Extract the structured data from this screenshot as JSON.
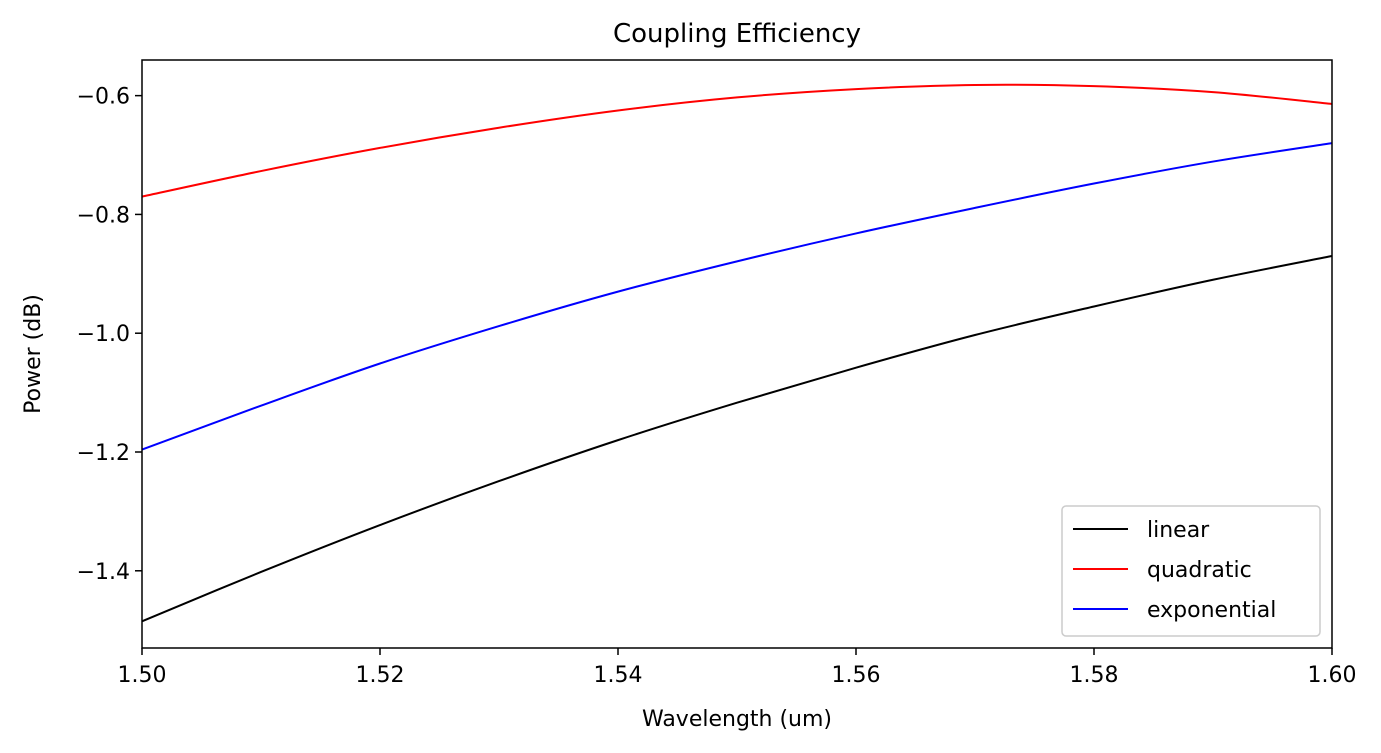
{
  "chart_data": {
    "type": "line",
    "title": "Coupling Efficiency",
    "xlabel": "Wavelength (um)",
    "ylabel": "Power (dB)",
    "xlim": [
      1.5,
      1.6
    ],
    "ylim": [
      -1.53,
      -0.54
    ],
    "x_ticks": [
      1.5,
      1.52,
      1.54,
      1.56,
      1.58,
      1.6
    ],
    "x_tick_labels": [
      "1.50",
      "1.52",
      "1.54",
      "1.56",
      "1.58",
      "1.60"
    ],
    "y_ticks": [
      -1.4,
      -1.2,
      -1.0,
      -0.8,
      -0.6
    ],
    "y_tick_labels": [
      "−1.4",
      "−1.2",
      "−1.0",
      "−0.8",
      "−0.6"
    ],
    "grid": false,
    "legend_position": "lower-right",
    "x": [
      1.5,
      1.51,
      1.52,
      1.53,
      1.54,
      1.55,
      1.56,
      1.57,
      1.58,
      1.59,
      1.6
    ],
    "series": [
      {
        "name": "linear",
        "color": "#000000",
        "values": [
          -1.485,
          -1.402,
          -1.323,
          -1.249,
          -1.18,
          -1.117,
          -1.058,
          -1.003,
          -0.955,
          -0.91,
          -0.87
        ]
      },
      {
        "name": "quadratic",
        "color": "#ff0000",
        "values": [
          -0.77,
          -0.727,
          -0.688,
          -0.654,
          -0.625,
          -0.603,
          -0.589,
          -0.582,
          -0.584,
          -0.594,
          -0.614
        ]
      },
      {
        "name": "exponential",
        "color": "#0000ff",
        "values": [
          -1.196,
          -1.122,
          -1.051,
          -0.988,
          -0.93,
          -0.879,
          -0.832,
          -0.789,
          -0.748,
          -0.711,
          -0.68
        ]
      }
    ]
  }
}
